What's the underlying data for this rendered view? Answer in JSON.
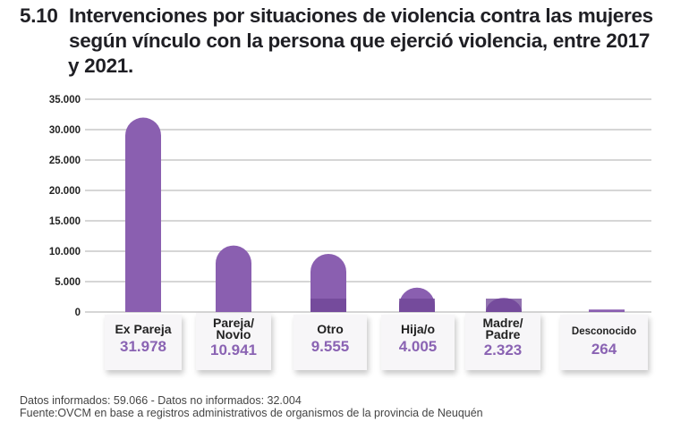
{
  "chart_data": {
    "type": "bar",
    "title_number": "5.10",
    "title_lines": [
      "Intervenciones por situaciones de violencia contra las mujeres",
      "según vínculo con la persona que ejerció violencia, entre 2017",
      "y 2021."
    ],
    "categories": [
      {
        "label": "Ex Pareja",
        "label_lines": [
          "Ex Pareja"
        ],
        "value_label": "31.978"
      },
      {
        "label": "Pareja/ Novio",
        "label_lines": [
          "Pareja/",
          "Novio"
        ],
        "value_label": "10.941"
      },
      {
        "label": "Otro",
        "label_lines": [
          "Otro"
        ],
        "value_label": "9.555"
      },
      {
        "label": "Hija/o",
        "label_lines": [
          "Hija/o"
        ],
        "value_label": "4.005"
      },
      {
        "label": "Madre/ Padre",
        "label_lines": [
          "Madre/",
          "Padre"
        ],
        "value_label": "2.323"
      },
      {
        "label": "Desconocido",
        "label_lines": [
          "Desconocido"
        ],
        "value_label": "264"
      }
    ],
    "values": [
      31978,
      10941,
      9555,
      4005,
      2323,
      264
    ],
    "ylim": [
      0,
      35000
    ],
    "yticks": [
      0,
      5000,
      10000,
      15000,
      20000,
      25000,
      30000,
      35000
    ],
    "ytick_labels": [
      "0",
      "5.000",
      "10.000",
      "15.000",
      "20.000",
      "25.000",
      "30.000",
      "35.000"
    ],
    "grid": true,
    "xlabel": "",
    "ylabel": "",
    "colors": {
      "bar": "#8a5fb0",
      "bar_dark": "#6e4496",
      "value_text": "#8a63b3"
    }
  },
  "footer": {
    "line1": "Datos informados: 59.066 - Datos no informados: 32.004",
    "line2": "Fuente:OVCM en base a registros administrativos de organismos de la provincia de Neuquén"
  }
}
